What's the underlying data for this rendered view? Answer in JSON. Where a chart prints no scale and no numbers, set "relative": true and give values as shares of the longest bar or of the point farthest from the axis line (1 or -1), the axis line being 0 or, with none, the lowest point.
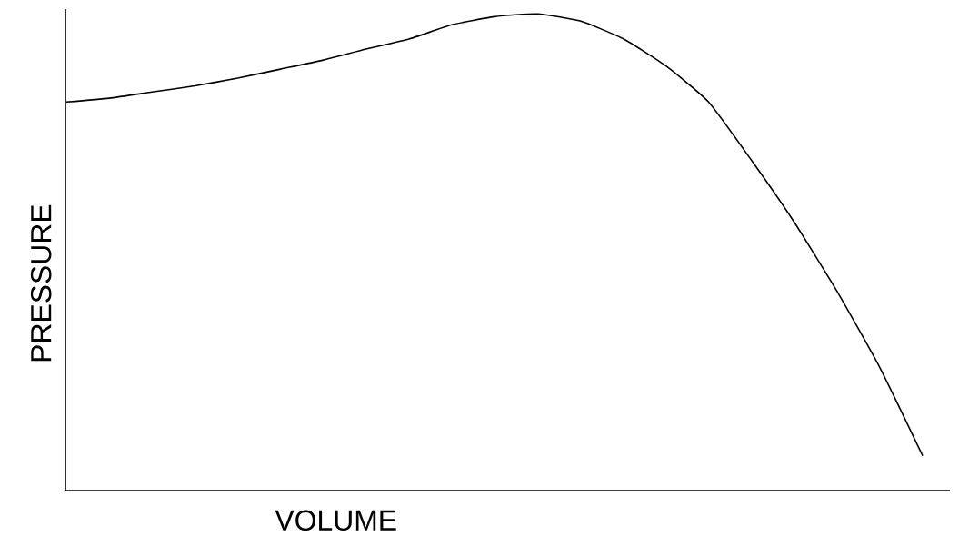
{
  "chart_data": {
    "type": "line",
    "xlabel": "VOLUME",
    "ylabel": "PRESSURE",
    "relative": true,
    "color": "#000000",
    "categories": [
      null,
      null,
      null,
      null,
      null,
      null,
      null,
      null,
      null,
      null,
      null,
      null,
      null,
      null,
      null,
      null,
      null,
      null,
      null,
      null,
      null
    ],
    "values": [
      0.815,
      0.823,
      0.836,
      0.849,
      0.865,
      0.884,
      0.903,
      0.926,
      0.947,
      0.977,
      0.994,
      1,
      0.985,
      0.948,
      0.891,
      0.815,
      0.693,
      0.563,
      0.418,
      0.258,
      0.073
    ]
  }
}
